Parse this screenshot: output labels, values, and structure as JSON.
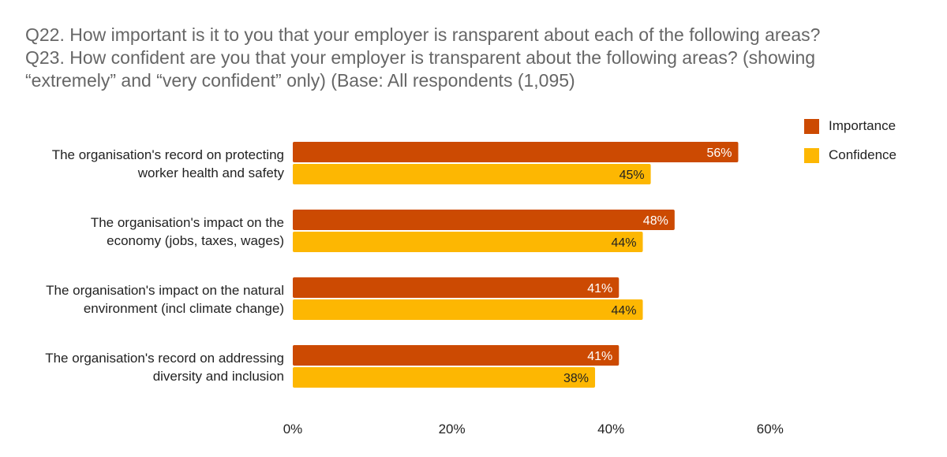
{
  "title_lines": [
    "Q22. How important is it to you that your employer is ransparent about each of the following areas?",
    "Q23. How confident are you that your employer is transparent about the following areas? (showing",
    "“extremely” and “very confident” only) (Base: All respondents (1,095)"
  ],
  "colors": {
    "importance": "#CC4A02",
    "confidence": "#FDB702",
    "title": "#666666"
  },
  "chart_data": {
    "type": "bar",
    "orientation": "horizontal",
    "categories": [
      [
        "The organisation's record on protecting",
        "worker health and safety"
      ],
      [
        "The organisation's impact on the",
        "economy (jobs, taxes, wages)"
      ],
      [
        "The organisation's impact on the natural",
        "environment (incl climate change)"
      ],
      [
        "The organisation's record on addressing",
        "diversity and inclusion"
      ]
    ],
    "series": [
      {
        "name": "Importance",
        "values": [
          56,
          48,
          41,
          41
        ],
        "labels": [
          "56%",
          "48%",
          "41%",
          "41%"
        ]
      },
      {
        "name": "Confidence",
        "values": [
          45,
          44,
          44,
          38
        ],
        "labels": [
          "45%",
          "44%",
          "44%",
          "38%"
        ]
      }
    ],
    "xlim": [
      0,
      60
    ],
    "xticks": [
      "0%",
      "20%",
      "40%",
      "60%"
    ],
    "grid": false,
    "legend_position": "top-right"
  }
}
